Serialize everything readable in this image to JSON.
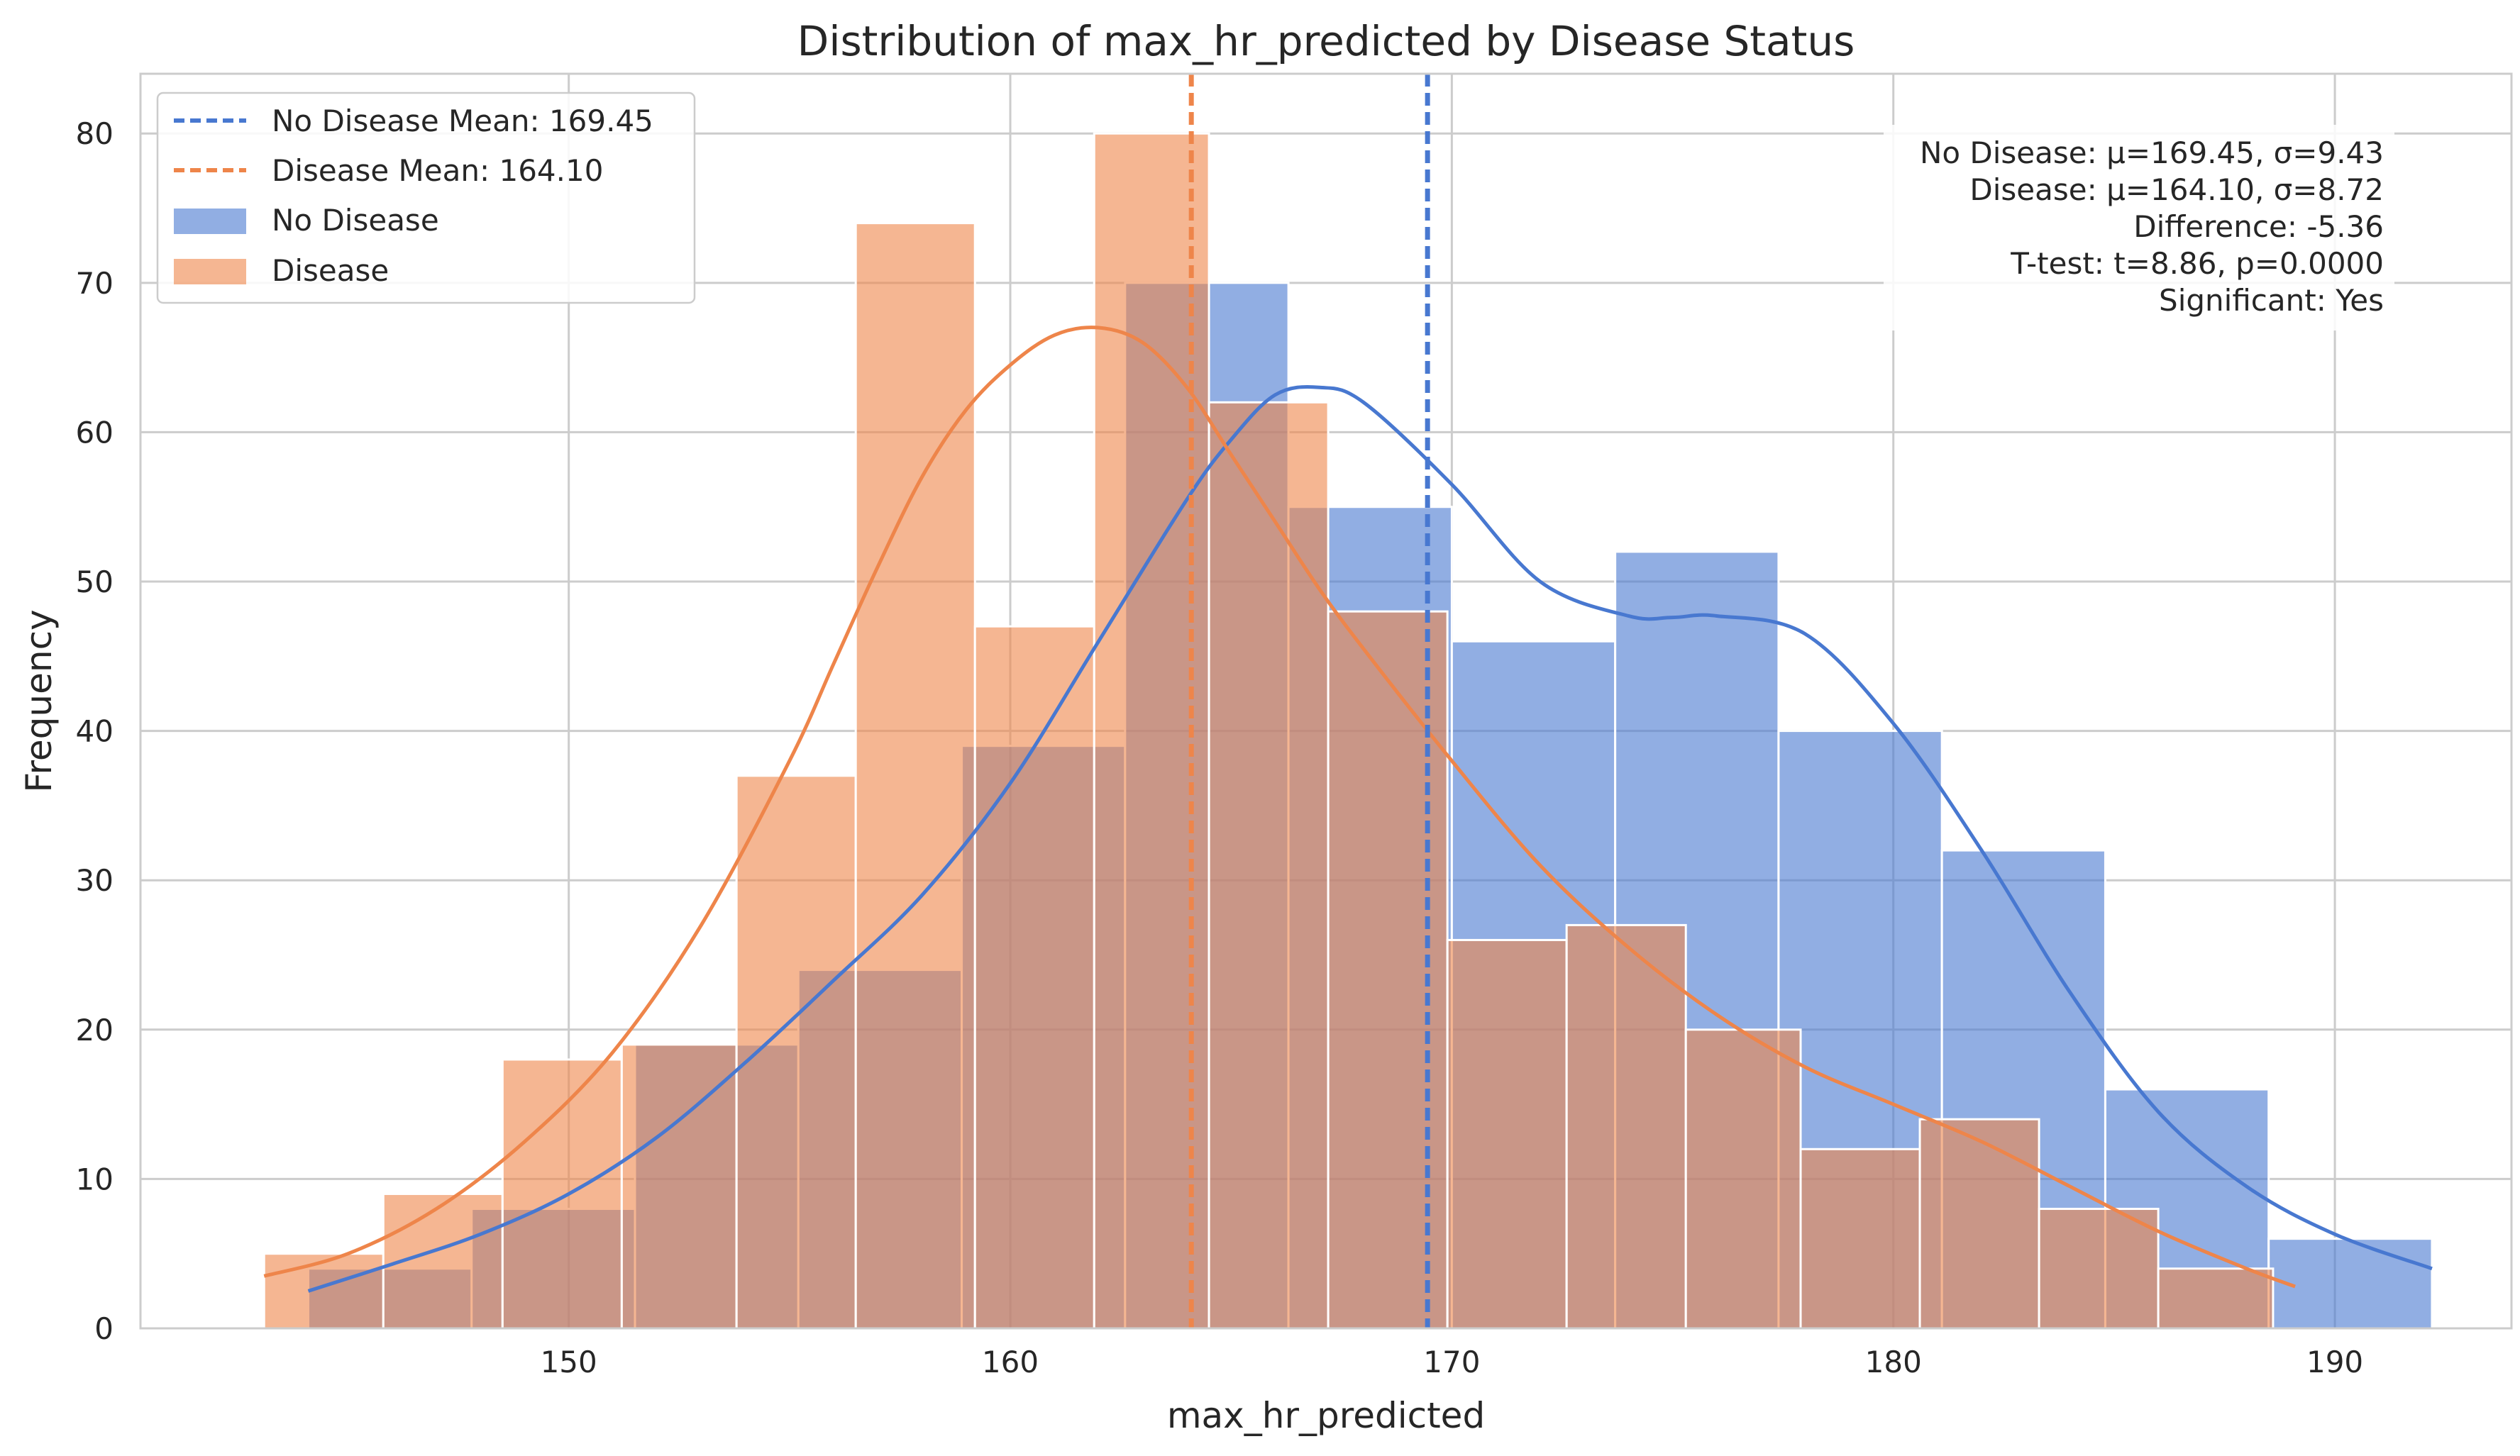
{
  "chart_data": {
    "type": "bar",
    "subtype": "histogram",
    "title": "Distribution of max_hr_predicted by Disease Status",
    "xlabel": "max_hr_predicted",
    "ylabel": "Frequency",
    "xlim": [
      140.3,
      194.0
    ],
    "ylim": [
      0,
      84
    ],
    "xticks": [
      150,
      160,
      170,
      180,
      190
    ],
    "yticks": [
      0,
      10,
      20,
      30,
      40,
      50,
      60,
      70,
      80
    ],
    "grid": true,
    "legend_position": "top-left",
    "series": [
      {
        "name": "No Disease",
        "color": "#4878d0",
        "bin_edges": [
          144.1,
          147.8,
          151.5,
          155.2,
          158.9,
          162.6,
          166.3,
          170.0,
          173.7,
          177.4,
          181.1,
          184.8,
          188.5,
          192.2
        ],
        "values": [
          4,
          8,
          19,
          24,
          39,
          70,
          55,
          46,
          52,
          40,
          32,
          16,
          6
        ],
        "kde": [
          [
            144.1,
            2.5
          ],
          [
            146,
            4.3
          ],
          [
            148,
            6.3
          ],
          [
            150,
            9.0
          ],
          [
            152,
            12.8
          ],
          [
            154,
            17.8
          ],
          [
            156,
            23.3
          ],
          [
            158,
            29.0
          ],
          [
            160,
            36.5
          ],
          [
            162,
            46.0
          ],
          [
            164,
            55.5
          ],
          [
            165,
            59.5
          ],
          [
            166,
            62.5
          ],
          [
            167,
            63.0
          ],
          [
            168,
            62.0
          ],
          [
            170,
            56.5
          ],
          [
            172,
            50.0
          ],
          [
            174,
            47.7
          ],
          [
            175,
            47.6
          ],
          [
            176,
            47.7
          ],
          [
            178,
            46.5
          ],
          [
            180,
            40.5
          ],
          [
            182,
            32.0
          ],
          [
            184,
            22.5
          ],
          [
            186,
            14.5
          ],
          [
            188,
            9.5
          ],
          [
            190,
            6.3
          ],
          [
            192.2,
            4.0
          ]
        ],
        "mean": 169.45,
        "mean_label": "No Disease Mean: 169.45"
      },
      {
        "name": "Disease",
        "color": "#ee854a",
        "bin_edges": [
          143.1,
          145.8,
          148.5,
          151.2,
          153.8,
          156.5,
          159.2,
          161.9,
          164.5,
          167.2,
          169.9,
          172.6,
          175.3,
          177.9,
          180.6,
          183.3,
          186.0,
          188.6
        ],
        "values": [
          5,
          9,
          18,
          19,
          37,
          74,
          47,
          80,
          62,
          48,
          26,
          27,
          20,
          12,
          14,
          8,
          4
        ],
        "kde": [
          [
            143.1,
            3.5
          ],
          [
            145,
            5.0
          ],
          [
            147,
            8.0
          ],
          [
            149,
            12.5
          ],
          [
            151,
            18.5
          ],
          [
            153,
            27.0
          ],
          [
            155,
            38.0
          ],
          [
            156,
            44.5
          ],
          [
            157,
            51.0
          ],
          [
            158,
            57.0
          ],
          [
            159,
            61.5
          ],
          [
            160,
            64.5
          ],
          [
            161,
            66.5
          ],
          [
            162,
            67.0
          ],
          [
            163,
            66.0
          ],
          [
            164,
            63.0
          ],
          [
            165,
            58.5
          ],
          [
            166,
            54.0
          ],
          [
            167,
            49.5
          ],
          [
            168,
            45.5
          ],
          [
            170,
            38.0
          ],
          [
            172,
            31.0
          ],
          [
            174,
            25.5
          ],
          [
            176,
            21.0
          ],
          [
            178,
            17.5
          ],
          [
            180,
            15.0
          ],
          [
            182,
            12.5
          ],
          [
            184,
            9.5
          ],
          [
            186,
            6.5
          ],
          [
            188,
            4.0
          ],
          [
            189.1,
            2.8
          ]
        ],
        "mean": 164.1,
        "mean_label": "Disease Mean: 164.10"
      }
    ],
    "stats_box": [
      "No Disease: μ=169.45, σ=9.43",
      "Disease: μ=164.10, σ=8.72",
      "Difference: -5.36",
      "T-test: t=8.86, p=0.0000",
      "Significant: Yes"
    ]
  },
  "colors": {
    "no_disease": "#4878d0",
    "disease": "#ee854a",
    "grid": "#cccccc",
    "axis": "#cccccc"
  }
}
